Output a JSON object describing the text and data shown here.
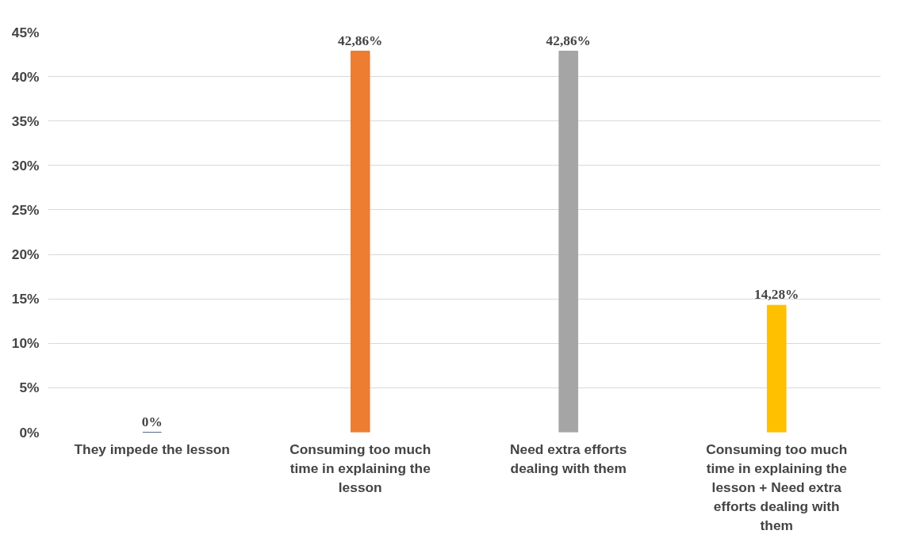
{
  "chart_data": {
    "type": "bar",
    "categories": [
      "They impede the lesson",
      "Consuming too much time in explaining the lesson",
      "Need extra efforts dealing with them",
      "Consuming too much time in explaining the lesson + Need extra efforts dealing with them"
    ],
    "values": [
      0,
      42.86,
      42.86,
      14.28
    ],
    "colors": [
      "#1f3864",
      "#ed7d31",
      "#a5a5a5",
      "#ffc000"
    ],
    "value_labels": [
      "0%",
      "42,86%",
      "42,86%",
      "14,28%"
    ],
    "ylim": [
      0,
      45
    ],
    "yticks": [
      {
        "value": 0,
        "label": "0%"
      },
      {
        "value": 5,
        "label": "5%"
      },
      {
        "value": 10,
        "label": "10%"
      },
      {
        "value": 15,
        "label": "15%"
      },
      {
        "value": 20,
        "label": "20%"
      },
      {
        "value": 25,
        "label": "25%"
      },
      {
        "value": 30,
        "label": "30%"
      },
      {
        "value": 35,
        "label": "35%"
      },
      {
        "value": 40,
        "label": "40%"
      },
      {
        "value": 45,
        "label": "45%"
      }
    ],
    "grid": "y"
  }
}
